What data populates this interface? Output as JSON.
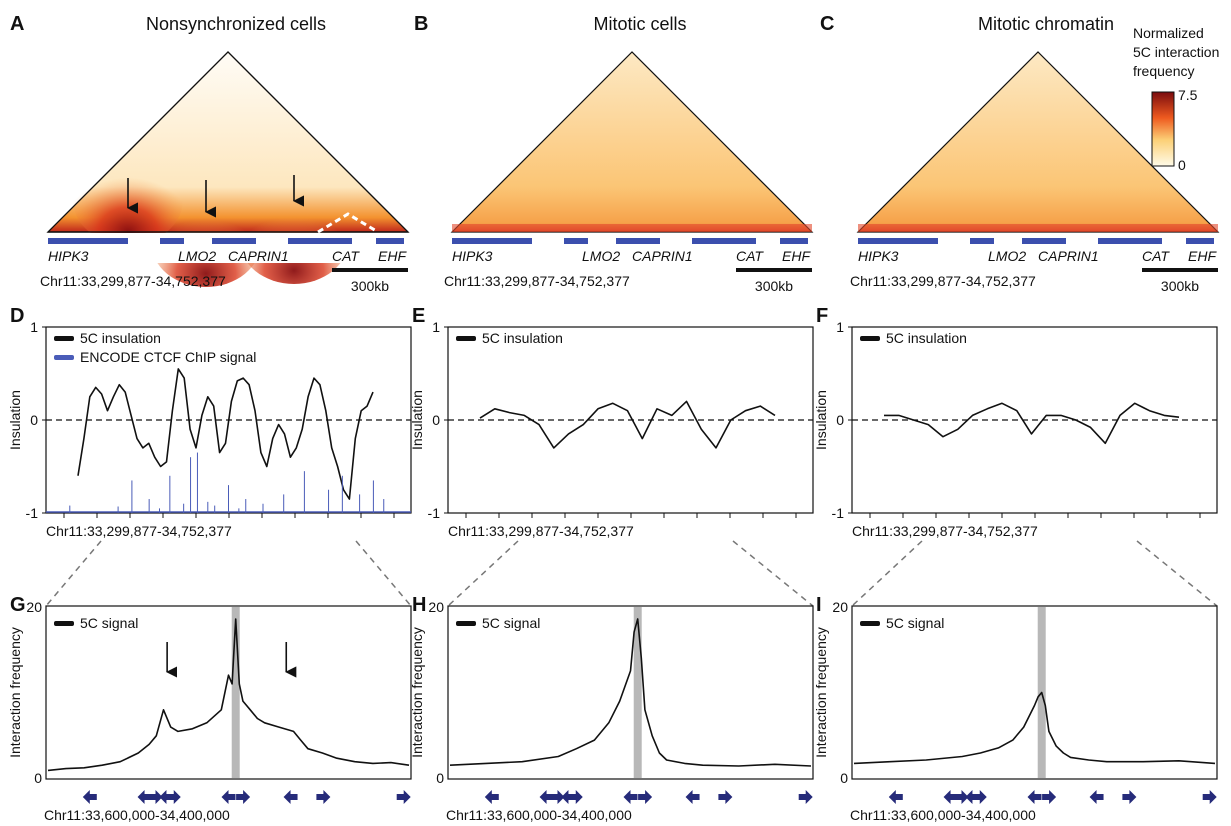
{
  "colors": {
    "line": "#111111",
    "ctcf": "#4a5cb8",
    "gene_track": "#3b4fae",
    "arrow_track": "#262b7a",
    "viewpoint_bar": "#b8b8b8",
    "heat_low": "#fff6e6",
    "heat_high": "#8a0f10"
  },
  "heatmaps": [
    {
      "label": "A",
      "title": "Nonsynchronized cells",
      "genes": [
        "HIPK3",
        "LMO2",
        "CAPRIN1",
        "CAT",
        "EHF"
      ],
      "coord": "Chr11:33,299,877-34,752,377",
      "scale": "300kb"
    },
    {
      "label": "B",
      "title": "Mitotic cells",
      "genes": [
        "HIPK3",
        "LMO2",
        "CAPRIN1",
        "CAT",
        "EHF"
      ],
      "coord": "Chr11:33,299,877-34,752,377",
      "scale": "300kb"
    },
    {
      "label": "C",
      "title": "Mitotic chromatin",
      "genes": [
        "HIPK3",
        "LMO2",
        "CAPRIN1",
        "CAT",
        "EHF"
      ],
      "coord": "Chr11:33,299,877-34,752,377",
      "scale": "300kb"
    }
  ],
  "colorbar": {
    "title": [
      "Normalized",
      "5C interaction",
      "frequency"
    ],
    "max": "7.5",
    "min": "0"
  },
  "insulation": {
    "ylabel": "Insulation",
    "yticks": [
      "1",
      "0",
      "-1"
    ],
    "coord": "Chr11:33,299,877-34,752,377",
    "legend_main": "5C insulation",
    "legend_ctcf": "ENCODE CTCF ChIP signal",
    "panels": [
      "D",
      "E",
      "F"
    ]
  },
  "signal": {
    "ylabel": "Interaction frequency",
    "yticks": [
      "20",
      "0"
    ],
    "coord": "Chr11:33,600,000-34,400,000",
    "legend": "5C signal",
    "panels": [
      "G",
      "H",
      "I"
    ]
  },
  "chart_data": [
    {
      "type": "line",
      "panel": "D",
      "ylabel": "Insulation",
      "ylim": [
        -1,
        1
      ],
      "xlabel": "Chr11:33,299,877-34,752,377",
      "series": [
        {
          "name": "5C insulation",
          "x": [
            0.0,
            0.02,
            0.04,
            0.06,
            0.08,
            0.1,
            0.12,
            0.14,
            0.16,
            0.18,
            0.2,
            0.22,
            0.24,
            0.26,
            0.28,
            0.3,
            0.32,
            0.34,
            0.36,
            0.38,
            0.4,
            0.42,
            0.44,
            0.46,
            0.48,
            0.5,
            0.52,
            0.54,
            0.56,
            0.58,
            0.6,
            0.62,
            0.64,
            0.66,
            0.68,
            0.7,
            0.72,
            0.74,
            0.76,
            0.78,
            0.8,
            0.82,
            0.84,
            0.86,
            0.88,
            0.9,
            0.92,
            0.94,
            0.96,
            0.98,
            1.0
          ],
          "y": [
            -0.6,
            -0.2,
            0.25,
            0.35,
            0.28,
            0.1,
            0.25,
            0.38,
            0.3,
            0.05,
            -0.2,
            -0.3,
            -0.25,
            -0.4,
            -0.5,
            -0.45,
            0.1,
            0.55,
            0.45,
            -0.1,
            -0.3,
            0.05,
            0.25,
            0.15,
            -0.35,
            -0.25,
            0.2,
            0.42,
            0.45,
            0.38,
            0.1,
            -0.35,
            -0.5,
            -0.2,
            -0.05,
            -0.15,
            -0.4,
            -0.3,
            -0.1,
            0.25,
            0.45,
            0.38,
            0.1,
            -0.3,
            -0.5,
            -0.75,
            -0.85,
            -0.2,
            0.1,
            0.15,
            0.3
          ]
        },
        {
          "name": "ENCODE CTCF ChIP signal",
          "x": [
            0.04,
            0.18,
            0.22,
            0.27,
            0.3,
            0.33,
            0.37,
            0.39,
            0.41,
            0.44,
            0.46,
            0.5,
            0.53,
            0.55,
            0.6,
            0.66,
            0.72,
            0.79,
            0.83,
            0.88,
            0.92,
            0.95
          ],
          "y": [
            -0.92,
            -0.93,
            -0.65,
            -0.85,
            -0.95,
            -0.6,
            -0.9,
            -0.4,
            -0.35,
            -0.88,
            -0.92,
            -0.7,
            -0.95,
            -0.85,
            -0.9,
            -0.8,
            -0.55,
            -0.75,
            -0.6,
            -0.8,
            -0.65,
            -0.85
          ]
        }
      ]
    },
    {
      "type": "line",
      "panel": "E",
      "ylabel": "Insulation",
      "ylim": [
        -1,
        1
      ],
      "xlabel": "Chr11:33,299,877-34,752,377",
      "series": [
        {
          "name": "5C insulation",
          "x": [
            0.0,
            0.05,
            0.1,
            0.15,
            0.2,
            0.25,
            0.3,
            0.35,
            0.4,
            0.45,
            0.5,
            0.55,
            0.6,
            0.65,
            0.7,
            0.75,
            0.8,
            0.85,
            0.9,
            0.95,
            1.0
          ],
          "y": [
            0.02,
            0.12,
            0.08,
            0.05,
            -0.05,
            -0.3,
            -0.15,
            -0.05,
            0.12,
            0.18,
            0.1,
            -0.2,
            0.12,
            0.05,
            0.2,
            -0.1,
            -0.3,
            0.0,
            0.1,
            0.15,
            0.05
          ]
        }
      ]
    },
    {
      "type": "line",
      "panel": "F",
      "ylabel": "Insulation",
      "ylim": [
        -1,
        1
      ],
      "xlabel": "Chr11:33,299,877-34,752,377",
      "series": [
        {
          "name": "5C insulation",
          "x": [
            0.0,
            0.05,
            0.1,
            0.15,
            0.2,
            0.25,
            0.3,
            0.35,
            0.4,
            0.45,
            0.5,
            0.55,
            0.6,
            0.65,
            0.7,
            0.75,
            0.8,
            0.85,
            0.9,
            0.95,
            1.0
          ],
          "y": [
            0.05,
            0.05,
            0.0,
            -0.05,
            -0.18,
            -0.1,
            0.05,
            0.12,
            0.18,
            0.1,
            -0.15,
            0.05,
            0.05,
            0.0,
            -0.08,
            -0.25,
            0.05,
            0.18,
            0.1,
            0.05,
            0.03
          ]
        }
      ]
    },
    {
      "type": "line",
      "panel": "G",
      "ylabel": "Interaction frequency",
      "ylim": [
        0,
        20
      ],
      "xlabel": "Chr11:33,600,000-34,400,000",
      "series": [
        {
          "name": "5C signal",
          "x": [
            0.0,
            0.05,
            0.1,
            0.15,
            0.2,
            0.25,
            0.28,
            0.3,
            0.32,
            0.34,
            0.36,
            0.4,
            0.44,
            0.48,
            0.5,
            0.51,
            0.52,
            0.53,
            0.54,
            0.55,
            0.56,
            0.58,
            0.6,
            0.64,
            0.68,
            0.7,
            0.72,
            0.76,
            0.8,
            0.85,
            0.9,
            0.95,
            1.0
          ],
          "y": [
            1.0,
            1.2,
            1.3,
            1.6,
            2.0,
            3.0,
            4.0,
            5.0,
            8.0,
            6.0,
            5.5,
            5.8,
            6.5,
            8.0,
            12.0,
            11.0,
            18.5,
            11.0,
            9.0,
            8.5,
            8.0,
            7.0,
            6.5,
            6.0,
            5.5,
            4.5,
            3.5,
            3.0,
            2.4,
            2.0,
            1.8,
            1.9,
            1.6
          ]
        }
      ]
    },
    {
      "type": "line",
      "panel": "H",
      "ylabel": "Interaction frequency",
      "ylim": [
        0,
        20
      ],
      "xlabel": "Chr11:33,600,000-34,400,000",
      "series": [
        {
          "name": "5C signal",
          "x": [
            0.0,
            0.1,
            0.2,
            0.3,
            0.35,
            0.4,
            0.44,
            0.47,
            0.5,
            0.51,
            0.52,
            0.53,
            0.54,
            0.56,
            0.58,
            0.6,
            0.65,
            0.7,
            0.8,
            0.9,
            1.0
          ],
          "y": [
            1.6,
            1.8,
            2.0,
            2.6,
            3.5,
            4.5,
            6.5,
            9.0,
            12.5,
            17.0,
            18.5,
            14.0,
            8.0,
            5.0,
            3.0,
            2.2,
            1.8,
            1.6,
            1.5,
            1.7,
            1.5
          ]
        }
      ]
    },
    {
      "type": "line",
      "panel": "I",
      "ylabel": "Interaction frequency",
      "ylim": [
        0,
        20
      ],
      "xlabel": "Chr11:33,600,000-34,400,000",
      "series": [
        {
          "name": "5C signal",
          "x": [
            0.0,
            0.1,
            0.2,
            0.3,
            0.35,
            0.4,
            0.44,
            0.47,
            0.5,
            0.51,
            0.52,
            0.53,
            0.54,
            0.56,
            0.58,
            0.6,
            0.65,
            0.7,
            0.8,
            0.9,
            1.0
          ],
          "y": [
            1.8,
            2.0,
            2.2,
            2.6,
            3.0,
            3.6,
            4.5,
            6.0,
            8.5,
            9.5,
            10.0,
            8.5,
            5.5,
            3.8,
            3.0,
            2.5,
            2.2,
            2.0,
            2.0,
            2.1,
            1.8
          ]
        }
      ]
    }
  ]
}
